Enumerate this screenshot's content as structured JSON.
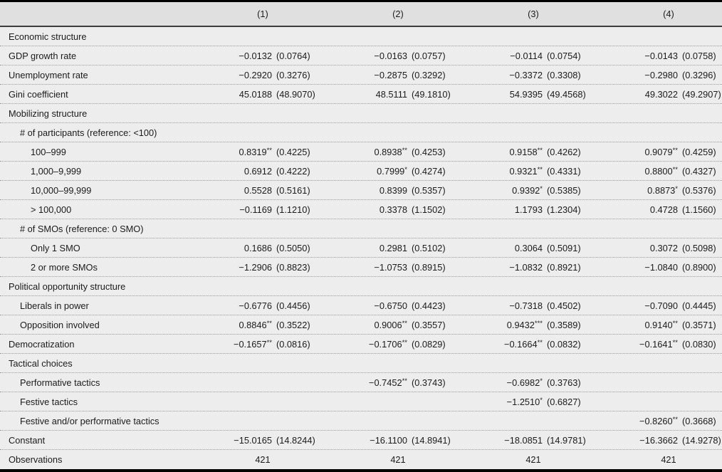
{
  "colors": {
    "header_bg": "#e0e0e0",
    "body_bg": "#ededed",
    "text": "#1b1b1b",
    "rule": "#9a9a9a",
    "border": "#000000"
  },
  "table": {
    "columns": [
      "(1)",
      "(2)",
      "(3)",
      "(4)"
    ],
    "rows": [
      {
        "label": "Economic structure",
        "indent": 0,
        "cells": [
          null,
          null,
          null,
          null
        ]
      },
      {
        "label": "GDP growth rate",
        "indent": 0,
        "cells": [
          {
            "coef": "−0.0132",
            "sig": "",
            "se": "(0.0764)"
          },
          {
            "coef": "−0.0163",
            "sig": "",
            "se": "(0.0757)"
          },
          {
            "coef": "−0.0114",
            "sig": "",
            "se": "(0.0754)"
          },
          {
            "coef": "−0.0143",
            "sig": "",
            "se": "(0.0758)"
          }
        ]
      },
      {
        "label": "Unemployment rate",
        "indent": 0,
        "cells": [
          {
            "coef": "−0.2920",
            "sig": "",
            "se": "(0.3276)"
          },
          {
            "coef": "−0.2875",
            "sig": "",
            "se": "(0.3292)"
          },
          {
            "coef": "−0.3372",
            "sig": "",
            "se": "(0.3308)"
          },
          {
            "coef": "−0.2980",
            "sig": "",
            "se": "(0.3296)"
          }
        ]
      },
      {
        "label": "Gini coefficient",
        "indent": 0,
        "cells": [
          {
            "coef": "45.0188",
            "sig": "",
            "se": "(48.9070)"
          },
          {
            "coef": "48.5111",
            "sig": "",
            "se": "(49.1810)"
          },
          {
            "coef": "54.9395",
            "sig": "",
            "se": "(49.4568)"
          },
          {
            "coef": "49.3022",
            "sig": "",
            "se": "(49.2907)"
          }
        ]
      },
      {
        "label": "Mobilizing structure",
        "indent": 0,
        "cells": [
          null,
          null,
          null,
          null
        ]
      },
      {
        "label": "# of participants (reference: <100)",
        "indent": 1,
        "cells": [
          null,
          null,
          null,
          null
        ]
      },
      {
        "label": "100–999",
        "indent": 2,
        "cells": [
          {
            "coef": "0.8319",
            "sig": "**",
            "se": "(0.4225)"
          },
          {
            "coef": "0.8938",
            "sig": "**",
            "se": "(0.4253)"
          },
          {
            "coef": "0.9158",
            "sig": "**",
            "se": "(0.4262)"
          },
          {
            "coef": "0.9079",
            "sig": "**",
            "se": "(0.4259)"
          }
        ]
      },
      {
        "label": "1,000–9,999",
        "indent": 2,
        "cells": [
          {
            "coef": "0.6912",
            "sig": "",
            "se": "(0.4222)"
          },
          {
            "coef": "0.7999",
            "sig": "*",
            "se": "(0.4274)"
          },
          {
            "coef": "0.9321",
            "sig": "**",
            "se": "(0.4331)"
          },
          {
            "coef": "0.8800",
            "sig": "**",
            "se": "(0.4327)"
          }
        ]
      },
      {
        "label": "10,000–99,999",
        "indent": 2,
        "cells": [
          {
            "coef": "0.5528",
            "sig": "",
            "se": "(0.5161)"
          },
          {
            "coef": "0.8399",
            "sig": "",
            "se": "(0.5357)"
          },
          {
            "coef": "0.9392",
            "sig": "*",
            "se": "(0.5385)"
          },
          {
            "coef": "0.8873",
            "sig": "*",
            "se": "(0.5376)"
          }
        ]
      },
      {
        "label": "> 100,000",
        "indent": 2,
        "cells": [
          {
            "coef": "−0.1169",
            "sig": "",
            "se": "(1.1210)"
          },
          {
            "coef": "0.3378",
            "sig": "",
            "se": "(1.1502)"
          },
          {
            "coef": "1.1793",
            "sig": "",
            "se": "(1.2304)"
          },
          {
            "coef": "0.4728",
            "sig": "",
            "se": "(1.1560)"
          }
        ]
      },
      {
        "label": "# of SMOs (reference: 0 SMO)",
        "indent": 1,
        "cells": [
          null,
          null,
          null,
          null
        ]
      },
      {
        "label": "Only 1 SMO",
        "indent": 2,
        "cells": [
          {
            "coef": "0.1686",
            "sig": "",
            "se": "(0.5050)"
          },
          {
            "coef": "0.2981",
            "sig": "",
            "se": "(0.5102)"
          },
          {
            "coef": "0.3064",
            "sig": "",
            "se": "(0.5091)"
          },
          {
            "coef": "0.3072",
            "sig": "",
            "se": "(0.5098)"
          }
        ]
      },
      {
        "label": "2 or more SMOs",
        "indent": 2,
        "cells": [
          {
            "coef": "−1.2906",
            "sig": "",
            "se": "(0.8823)"
          },
          {
            "coef": "−1.0753",
            "sig": "",
            "se": "(0.8915)"
          },
          {
            "coef": "−1.0832",
            "sig": "",
            "se": "(0.8921)"
          },
          {
            "coef": "−1.0840",
            "sig": "",
            "se": "(0.8900)"
          }
        ]
      },
      {
        "label": "Political opportunity structure",
        "indent": 0,
        "cells": [
          null,
          null,
          null,
          null
        ]
      },
      {
        "label": "Liberals in power",
        "indent": 1,
        "cells": [
          {
            "coef": "−0.6776",
            "sig": "",
            "se": "(0.4456)"
          },
          {
            "coef": "−0.6750",
            "sig": "",
            "se": "(0.4423)"
          },
          {
            "coef": "−0.7318",
            "sig": "",
            "se": "(0.4502)"
          },
          {
            "coef": "−0.7090",
            "sig": "",
            "se": "(0.4445)"
          }
        ]
      },
      {
        "label": "Opposition involved",
        "indent": 1,
        "cells": [
          {
            "coef": "0.8846",
            "sig": "**",
            "se": "(0.3522)"
          },
          {
            "coef": "0.9006",
            "sig": "**",
            "se": "(0.3557)"
          },
          {
            "coef": "0.9432",
            "sig": "***",
            "se": "(0.3589)"
          },
          {
            "coef": "0.9140",
            "sig": "**",
            "se": "(0.3571)"
          }
        ]
      },
      {
        "label": "Democratization",
        "indent": 0,
        "cells": [
          {
            "coef": "−0.1657",
            "sig": "**",
            "se": "(0.0816)"
          },
          {
            "coef": "−0.1706",
            "sig": "**",
            "se": "(0.0829)"
          },
          {
            "coef": "−0.1664",
            "sig": "**",
            "se": "(0.0832)"
          },
          {
            "coef": "−0.1641",
            "sig": "**",
            "se": "(0.0830)"
          }
        ]
      },
      {
        "label": "Tactical choices",
        "indent": 0,
        "cells": [
          null,
          null,
          null,
          null
        ]
      },
      {
        "label": "Performative tactics",
        "indent": 1,
        "cells": [
          null,
          {
            "coef": "−0.7452",
            "sig": "**",
            "se": "(0.3743)"
          },
          {
            "coef": "−0.6982",
            "sig": "*",
            "se": "(0.3763)"
          },
          null
        ]
      },
      {
        "label": "Festive tactics",
        "indent": 1,
        "cells": [
          null,
          null,
          {
            "coef": "−1.2510",
            "sig": "*",
            "se": "(0.6827)"
          },
          null
        ]
      },
      {
        "label": "Festive and/or performative tactics",
        "indent": 1,
        "cells": [
          null,
          null,
          null,
          {
            "coef": "−0.8260",
            "sig": "**",
            "se": "(0.3668)"
          }
        ]
      },
      {
        "label": "Constant",
        "indent": 0,
        "cells": [
          {
            "coef": "−15.0165",
            "sig": "",
            "se": "(14.8244)"
          },
          {
            "coef": "−16.1100",
            "sig": "",
            "se": "(14.8941)"
          },
          {
            "coef": "−18.0851",
            "sig": "",
            "se": "(14.9781)"
          },
          {
            "coef": "−16.3662",
            "sig": "",
            "se": "(14.9278)"
          }
        ]
      },
      {
        "label": "Observations",
        "indent": 0,
        "center": true,
        "cells": [
          "421",
          "421",
          "421",
          "421"
        ]
      }
    ]
  }
}
